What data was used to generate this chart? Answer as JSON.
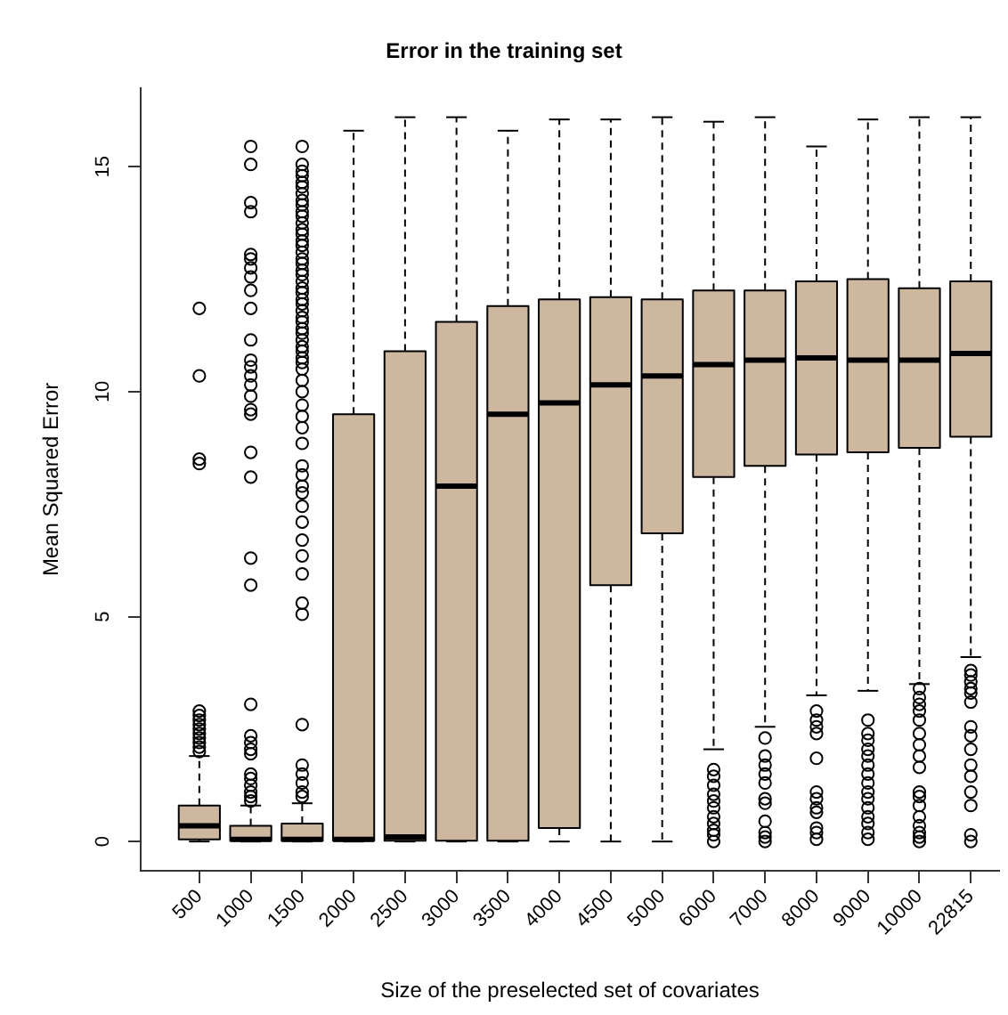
{
  "chart_data": {
    "type": "box",
    "title": "Error in the training set",
    "xlabel": "Size of the preselected set of covariates",
    "ylabel": "Mean Squared Error",
    "categories": [
      "500",
      "1000",
      "1500",
      "2000",
      "2500",
      "3000",
      "3500",
      "4000",
      "4500",
      "5000",
      "6000",
      "7000",
      "8000",
      "9000",
      "10000",
      "22815"
    ],
    "color": "#cdb79e",
    "ylim": [
      -0.65,
      16.75
    ],
    "yticks": [
      0,
      5,
      10,
      15
    ],
    "grid": false,
    "legend": false,
    "marker": "circle",
    "line_style": "dashed",
    "boxes": [
      {
        "low": 0,
        "q1": 0.05,
        "median": 0.35,
        "q3": 0.8,
        "high": 1.9,
        "outliers": [
          2.0,
          2.1,
          2.2,
          2.3,
          2.4,
          2.5,
          2.6,
          2.7,
          2.8,
          2.9,
          8.4,
          8.5,
          10.35,
          11.85
        ]
      },
      {
        "low": 0,
        "q1": 0.02,
        "median": 0.05,
        "q3": 0.35,
        "high": 0.8,
        "outliers": [
          0.9,
          1.0,
          1.1,
          1.25,
          1.4,
          1.5,
          1.95,
          2.05,
          2.2,
          2.35,
          3.05,
          5.7,
          6.3,
          8.1,
          8.65,
          9.5,
          9.6,
          9.9,
          10.15,
          10.35,
          10.55,
          10.7,
          11.15,
          11.85,
          12.25,
          12.55,
          12.75,
          12.95,
          13.05,
          14.0,
          14.2,
          15.05,
          15.45
        ]
      },
      {
        "low": 0,
        "q1": 0.02,
        "median": 0.05,
        "q3": 0.4,
        "high": 0.85,
        "outliers": [
          1.0,
          1.1,
          1.3,
          1.5,
          1.7,
          2.6,
          5.05,
          5.3,
          5.95,
          6.35,
          6.7,
          7.1,
          7.45,
          7.75,
          7.9,
          8.15,
          8.35,
          8.85,
          9.2,
          9.45,
          9.7,
          10.0,
          10.25,
          10.5,
          10.65,
          10.75,
          10.9,
          11.0,
          11.15,
          11.3,
          11.4,
          11.55,
          11.65,
          11.8,
          11.95,
          12.05,
          12.2,
          12.3,
          12.45,
          12.6,
          12.7,
          12.85,
          12.95,
          13.1,
          13.25,
          13.35,
          13.5,
          13.6,
          13.75,
          13.9,
          14.0,
          14.15,
          14.25,
          14.4,
          14.55,
          14.65,
          14.8,
          14.9,
          15.05,
          15.45
        ]
      },
      {
        "low": 0,
        "q1": 0.02,
        "median": 0.05,
        "q3": 9.5,
        "high": 15.8
      },
      {
        "low": 0,
        "q1": 0.02,
        "median": 0.1,
        "q3": 10.9,
        "high": 16.1
      },
      {
        "low": 0,
        "q1": 0.02,
        "median": 7.9,
        "q3": 11.55,
        "high": 16.1
      },
      {
        "low": 0,
        "q1": 0.02,
        "median": 9.5,
        "q3": 11.9,
        "high": 15.8
      },
      {
        "low": 0,
        "q1": 0.3,
        "median": 9.75,
        "q3": 12.05,
        "high": 16.05
      },
      {
        "low": 0,
        "q1": 5.7,
        "median": 10.15,
        "q3": 12.1,
        "high": 16.05
      },
      {
        "low": 0,
        "q1": 6.85,
        "median": 10.35,
        "q3": 12.05,
        "high": 16.1
      },
      {
        "low": 2.05,
        "q1": 8.1,
        "median": 10.6,
        "q3": 12.25,
        "high": 16.0,
        "outliers": [
          0.0,
          0.15,
          0.25,
          0.4,
          0.55,
          0.75,
          0.9,
          1.05,
          1.25,
          1.45,
          1.6
        ]
      },
      {
        "low": 2.55,
        "q1": 8.35,
        "median": 10.7,
        "q3": 12.25,
        "high": 16.1,
        "outliers": [
          0.0,
          0.1,
          0.2,
          0.45,
          0.85,
          0.95,
          1.3,
          1.5,
          1.7,
          1.9,
          2.3
        ]
      },
      {
        "low": 3.25,
        "q1": 8.6,
        "median": 10.75,
        "q3": 12.45,
        "high": 15.45,
        "outliers": [
          0.05,
          0.2,
          0.3,
          0.65,
          0.75,
          0.95,
          1.1,
          1.85,
          2.4,
          2.55,
          2.7,
          2.9
        ]
      },
      {
        "low": 3.35,
        "q1": 8.65,
        "median": 10.7,
        "q3": 12.5,
        "high": 16.05,
        "outliers": [
          0.05,
          0.2,
          0.4,
          0.55,
          0.75,
          0.95,
          1.1,
          1.3,
          1.5,
          1.7,
          1.9,
          2.05,
          2.25,
          2.4,
          2.7
        ]
      },
      {
        "low": 3.5,
        "q1": 8.75,
        "median": 10.7,
        "q3": 12.3,
        "high": 16.1,
        "outliers": [
          0.0,
          0.1,
          0.2,
          0.35,
          0.55,
          0.8,
          1.0,
          1.1,
          1.65,
          1.9,
          2.15,
          2.4,
          2.7,
          2.9,
          3.05,
          3.2,
          3.4
        ]
      },
      {
        "low": 4.1,
        "q1": 9.0,
        "median": 10.85,
        "q3": 12.45,
        "high": 16.1,
        "outliers": [
          0.0,
          0.15,
          0.8,
          1.1,
          1.45,
          1.7,
          2.05,
          2.35,
          2.55,
          3.1,
          3.3,
          3.4,
          3.55,
          3.7,
          3.8
        ]
      }
    ]
  }
}
